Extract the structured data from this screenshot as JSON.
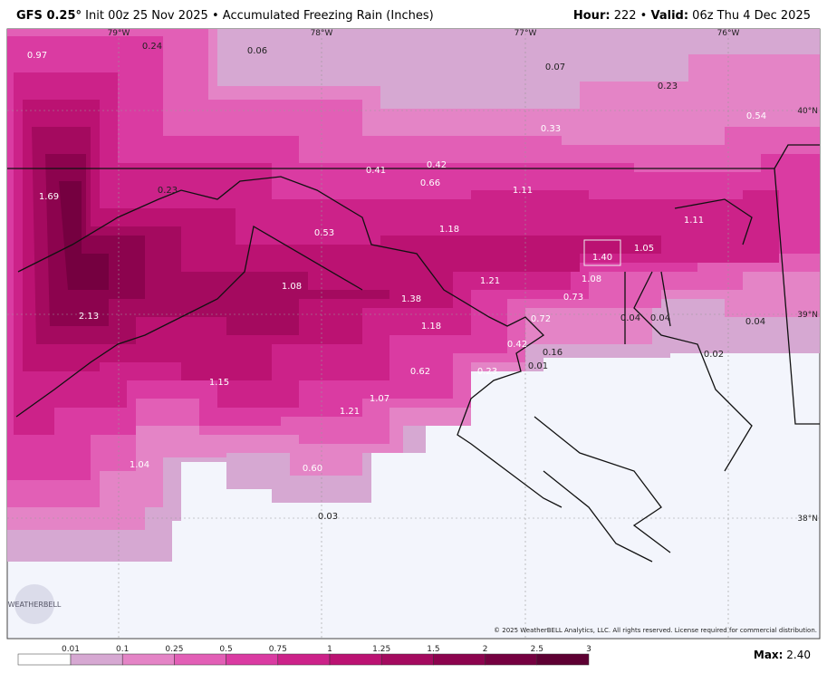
{
  "header": {
    "model": "GFS 0.25°",
    "init": "Init 00z 25 Nov 2025",
    "sep": "•",
    "product": "Accumulated Freezing Rain (Inches)",
    "hour_label": "Hour:",
    "hour": "222",
    "valid_label": "Valid:",
    "valid": "06z Thu 4 Dec 2025"
  },
  "grid_labels": {
    "lon": [
      "79°W",
      "78°W",
      "77°W",
      "76°W"
    ],
    "lat": [
      "40°N",
      "39°N",
      "38°N"
    ]
  },
  "point_values": [
    "0.97",
    "0.24",
    "0.06",
    "0.07",
    "0.23",
    "0.54",
    "0.33",
    "1.69",
    "0.23",
    "0.41",
    "0.42",
    "0.66",
    "1.11",
    "1.11",
    "0.53",
    "1.18",
    "1.05",
    "1.40",
    "1.08",
    "1.21",
    "1.08",
    "1.38",
    "0.73",
    "2.13",
    "0.72",
    "0.04",
    "0.04",
    "0.04",
    "1.18",
    "0.42",
    "0.16",
    "0.01",
    "0.02",
    "0.62",
    "0.23",
    "1.15",
    "1.07",
    "1.21",
    "0.60",
    "1.04",
    "0.03"
  ],
  "copyright": "© 2025 WeatherBELL Analytics, LLC. All rights reserved. License required for commercial distribution.",
  "logo": "WEATHERBELL",
  "colorbar": {
    "labels": [
      "0.01",
      "0.1",
      "0.25",
      "0.5",
      "0.75",
      "1",
      "1.25",
      "1.5",
      "2",
      "2.5",
      "3"
    ],
    "colors": [
      "#ffffff",
      "#d6a8d2",
      "#e484c6",
      "#e25fb6",
      "#da3ba2",
      "#cc2289",
      "#bb1272",
      "#a40a5f",
      "#8c034e",
      "#750040",
      "#5e0033"
    ]
  },
  "max_label": "Max:",
  "max_value": "2.40"
}
